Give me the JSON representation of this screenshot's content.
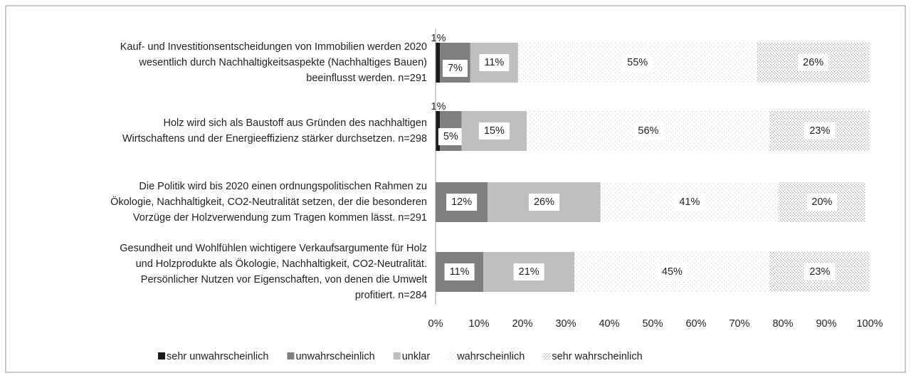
{
  "chart_data": {
    "type": "stacked-bar-horizontal",
    "categories": [
      "Kauf- und Investitionsentscheidungen von Immobilien werden 2020\nwesentlich durch Nachhaltigkeitsaspekte (Nachhaltiges Bauen)\nbeeinflusst werden. n=291",
      "Holz wird sich als Baustoff aus Gründen des nachhaltigen\nWirtschaftens und der Energieeffizienz stärker durchsetzen. n=298",
      "Die Politik wird bis 2020 einen ordnungspolitischen Rahmen zu\nÖkologie, Nachhaltigkeit, CO2-Neutralität setzen, der die besonderen\nVorzüge der Holzverwendung zum Tragen kommen lässt. n=291",
      "Gesundheit und Wohlfühlen wichtigere Verkaufsargumente für Holz\nund Holzprodukte  als Ökologie, Nachhaltigkeit, CO2-Neutralität.\nPersönlicher  Nutzen vor Eigenschaften, von denen die Umwelt\nprofitiert. n=284"
    ],
    "series": [
      {
        "name": "sehr unwahrscheinlich",
        "color": "#1a1a1a",
        "values": [
          1,
          1,
          null,
          null
        ],
        "value_labels": [
          "1%",
          "1%",
          null,
          null
        ]
      },
      {
        "name": "unwahrscheinlich",
        "color": "#7f7f7f",
        "values": [
          7,
          5,
          12,
          11
        ],
        "value_labels": [
          "7%",
          "5%",
          "12%",
          "11%"
        ]
      },
      {
        "name": "unklar",
        "color": "#bfbfbf",
        "values": [
          11,
          15,
          26,
          21
        ],
        "value_labels": [
          "11%",
          "15%",
          "26%",
          "21%"
        ]
      },
      {
        "name": "wahrscheinlich",
        "color": "#d0d0d0",
        "pattern": "sparse-dots",
        "values": [
          55,
          56,
          41,
          45
        ],
        "value_labels": [
          "55%",
          "56%",
          "41%",
          "45%"
        ]
      },
      {
        "name": "sehr wahrscheinlich",
        "color": "#9a9a9a",
        "pattern": "dense-dots",
        "values": [
          26,
          23,
          20,
          23
        ],
        "value_labels": [
          "26%",
          "23%",
          "20%",
          "23%"
        ]
      }
    ],
    "xlim": [
      0,
      100
    ],
    "xticks": [
      {
        "value": 0,
        "label": "0%"
      },
      {
        "value": 10,
        "label": "10%"
      },
      {
        "value": 20,
        "label": "20%"
      },
      {
        "value": 30,
        "label": "30%"
      },
      {
        "value": 40,
        "label": "40%"
      },
      {
        "value": 50,
        "label": "50%"
      },
      {
        "value": 60,
        "label": "60%"
      },
      {
        "value": 70,
        "label": "70%"
      },
      {
        "value": 80,
        "label": "80%"
      },
      {
        "value": 90,
        "label": "90%"
      },
      {
        "value": 100,
        "label": "100%"
      }
    ],
    "legend": "bottom"
  }
}
